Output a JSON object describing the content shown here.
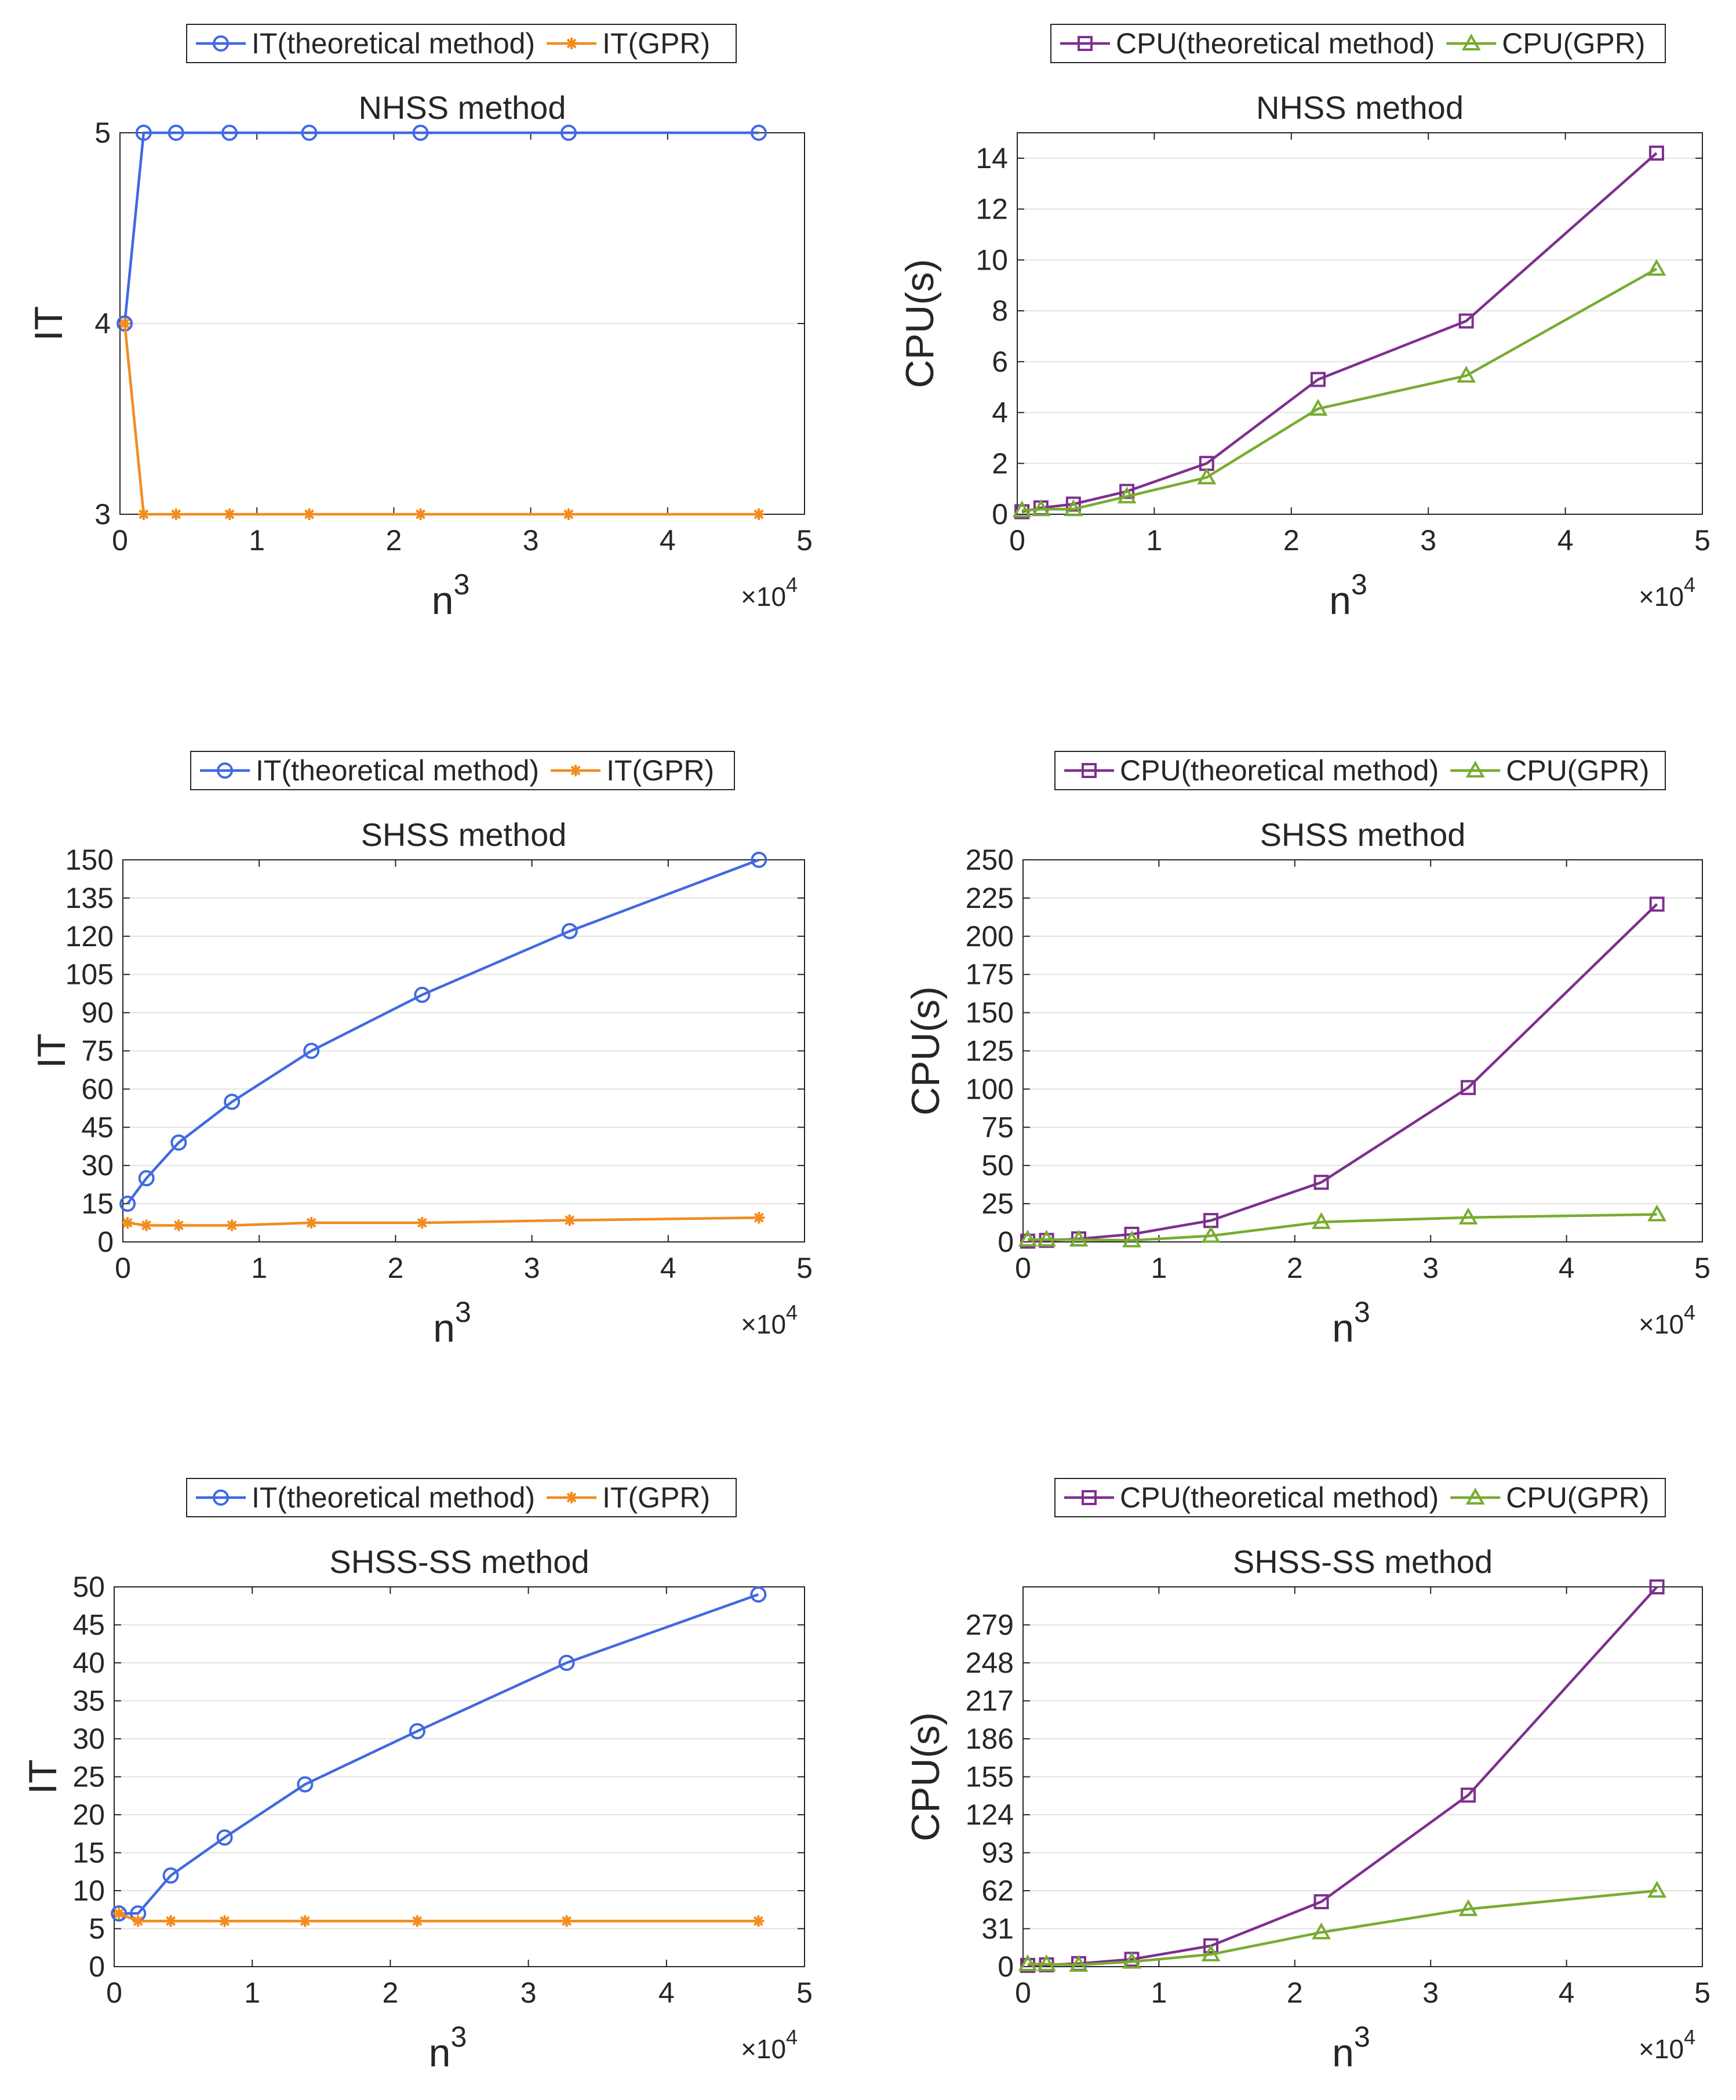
{
  "chart_data": [
    {
      "type": "line",
      "title": "NHSS method",
      "xlabel": "n",
      "xlabel_superscript": "3",
      "ylabel": "IT",
      "x_multiplier_base": "×10",
      "x_multiplier_exp": "4",
      "xlim": [
        0,
        5
      ],
      "ylim": [
        3,
        5
      ],
      "xticks": [
        "0",
        "1",
        "2",
        "3",
        "4",
        "5"
      ],
      "yticks": [
        3,
        4,
        5
      ],
      "ytick_labels": [
        "3",
        "4",
        "5"
      ],
      "x": [
        0.0343,
        0.1728,
        0.4096,
        0.8,
        1.3824,
        2.1952,
        3.2768,
        4.6656
      ],
      "series": [
        {
          "name": "IT(theoretical method)",
          "color": "#4169E1",
          "marker": "circle",
          "values": [
            4,
            5,
            5,
            5,
            5,
            5,
            5,
            5
          ]
        },
        {
          "name": "IT(GPR)",
          "color": "#F28C1E",
          "marker": "star",
          "values": [
            4,
            3,
            3,
            3,
            3,
            3,
            3,
            3
          ]
        }
      ]
    },
    {
      "type": "line",
      "title": "NHSS method",
      "xlabel": "n",
      "xlabel_superscript": "3",
      "ylabel": "CPU(s)",
      "x_multiplier_base": "×10",
      "x_multiplier_exp": "4",
      "xlim": [
        0,
        5
      ],
      "ylim": [
        0,
        15
      ],
      "xticks": [
        "0",
        "1",
        "2",
        "3",
        "4",
        "5"
      ],
      "yticks": [
        0,
        2,
        4,
        6,
        8,
        10,
        12,
        14
      ],
      "ytick_labels": [
        "0",
        "2",
        "4",
        "6",
        "8",
        "10",
        "12",
        "14"
      ],
      "x": [
        0.0343,
        0.1728,
        0.4096,
        0.8,
        1.3824,
        2.1952,
        3.2768,
        4.6656
      ],
      "series": [
        {
          "name": "CPU(theoretical method)",
          "color": "#7E2F8E",
          "marker": "square",
          "values": [
            0.1,
            0.25,
            0.4,
            0.9,
            2.0,
            5.3,
            7.6,
            14.2
          ]
        },
        {
          "name": "CPU(GPR)",
          "color": "#77AC30",
          "marker": "triangle",
          "values": [
            0.15,
            0.2,
            0.2,
            0.7,
            1.45,
            4.15,
            5.45,
            9.65
          ]
        }
      ]
    },
    {
      "type": "line",
      "title": "SHSS method",
      "xlabel": "n",
      "xlabel_superscript": "3",
      "ylabel": "IT",
      "x_multiplier_base": "×10",
      "x_multiplier_exp": "4",
      "xlim": [
        0,
        5
      ],
      "ylim": [
        0,
        150
      ],
      "xticks": [
        "0",
        "1",
        "2",
        "3",
        "4",
        "5"
      ],
      "yticks": [
        0,
        15,
        30,
        45,
        60,
        75,
        90,
        105,
        120,
        135,
        150
      ],
      "ytick_labels": [
        "0",
        "15",
        "30",
        "45",
        "60",
        "75",
        "90",
        "105",
        "120",
        "135",
        "150"
      ],
      "x": [
        0.0343,
        0.1728,
        0.4096,
        0.8,
        1.3824,
        2.1952,
        3.2768,
        4.6656
      ],
      "series": [
        {
          "name": "IT(theoretical method)",
          "color": "#4169E1",
          "marker": "circle",
          "values": [
            15,
            25,
            39,
            55,
            75,
            97,
            122,
            150
          ]
        },
        {
          "name": "IT(GPR)",
          "color": "#F28C1E",
          "marker": "star",
          "values": [
            7.5,
            6.5,
            6.5,
            6.5,
            7.5,
            7.5,
            8.5,
            9.5
          ]
        }
      ]
    },
    {
      "type": "line",
      "title": "SHSS method",
      "xlabel": "n",
      "xlabel_superscript": "3",
      "ylabel": "CPU(s)",
      "x_multiplier_base": "×10",
      "x_multiplier_exp": "4",
      "xlim": [
        0,
        5
      ],
      "ylim": [
        0,
        250
      ],
      "xticks": [
        "0",
        "1",
        "2",
        "3",
        "4",
        "5"
      ],
      "yticks": [
        0,
        25,
        50,
        75,
        100,
        125,
        150,
        175,
        200,
        225,
        250
      ],
      "ytick_labels": [
        "0",
        "25",
        "50",
        "75",
        "100",
        "125",
        "150",
        "175",
        "200",
        "225",
        "250"
      ],
      "x": [
        0.0343,
        0.1728,
        0.4096,
        0.8,
        1.3824,
        2.1952,
        3.2768,
        4.6656
      ],
      "series": [
        {
          "name": "CPU(theoretical method)",
          "color": "#7E2F8E",
          "marker": "square",
          "values": [
            0.5,
            1,
            2,
            5,
            14,
            39,
            101,
            221
          ]
        },
        {
          "name": "CPU(GPR)",
          "color": "#77AC30",
          "marker": "triangle",
          "values": [
            1.5,
            1.5,
            1.5,
            1,
            4,
            13,
            16,
            18
          ]
        }
      ]
    },
    {
      "type": "line",
      "title": "SHSS-SS method",
      "xlabel": "n",
      "xlabel_superscript": "3",
      "ylabel": "IT",
      "x_multiplier_base": "×10",
      "x_multiplier_exp": "4",
      "xlim": [
        0,
        5
      ],
      "ylim": [
        0,
        50
      ],
      "xticks": [
        "0",
        "1",
        "2",
        "3",
        "4",
        "5"
      ],
      "yticks": [
        0,
        5,
        10,
        15,
        20,
        25,
        30,
        35,
        40,
        45,
        50
      ],
      "ytick_labels": [
        "0",
        "5",
        "10",
        "15",
        "20",
        "25",
        "30",
        "35",
        "40",
        "45",
        "50"
      ],
      "x": [
        0.0343,
        0.1728,
        0.4096,
        0.8,
        1.3824,
        2.1952,
        3.2768,
        4.6656
      ],
      "series": [
        {
          "name": "IT(theoretical method)",
          "color": "#4169E1",
          "marker": "circle",
          "values": [
            7,
            7,
            12,
            17,
            24,
            31,
            40,
            49
          ]
        },
        {
          "name": "IT(GPR)",
          "color": "#F28C1E",
          "marker": "star",
          "values": [
            7,
            6,
            6,
            6,
            6,
            6,
            6,
            6
          ]
        }
      ]
    },
    {
      "type": "line",
      "title": "SHSS-SS method",
      "xlabel": "n",
      "xlabel_superscript": "3",
      "ylabel": "CPU(s)",
      "x_multiplier_base": "×10",
      "x_multiplier_exp": "4",
      "xlim": [
        0,
        5
      ],
      "ylim": [
        0,
        310
      ],
      "xticks": [
        "0",
        "1",
        "2",
        "3",
        "4",
        "5"
      ],
      "yticks": [
        0,
        31,
        62,
        93,
        124,
        155,
        186,
        217,
        248,
        279
      ],
      "ytick_labels": [
        "0",
        "31",
        "62",
        "93",
        "124",
        "155",
        "186",
        "217",
        "248",
        "279"
      ],
      "x": [
        0.0343,
        0.1728,
        0.4096,
        0.8,
        1.3824,
        2.1952,
        3.2768,
        4.6656
      ],
      "series": [
        {
          "name": "CPU(theoretical method)",
          "color": "#7E2F8E",
          "marker": "square",
          "values": [
            1,
            1.5,
            2.5,
            6,
            17,
            53,
            140,
            310
          ]
        },
        {
          "name": "CPU(GPR)",
          "color": "#77AC30",
          "marker": "triangle",
          "values": [
            2,
            2,
            1.5,
            4,
            10,
            28,
            47,
            62
          ]
        }
      ]
    }
  ]
}
